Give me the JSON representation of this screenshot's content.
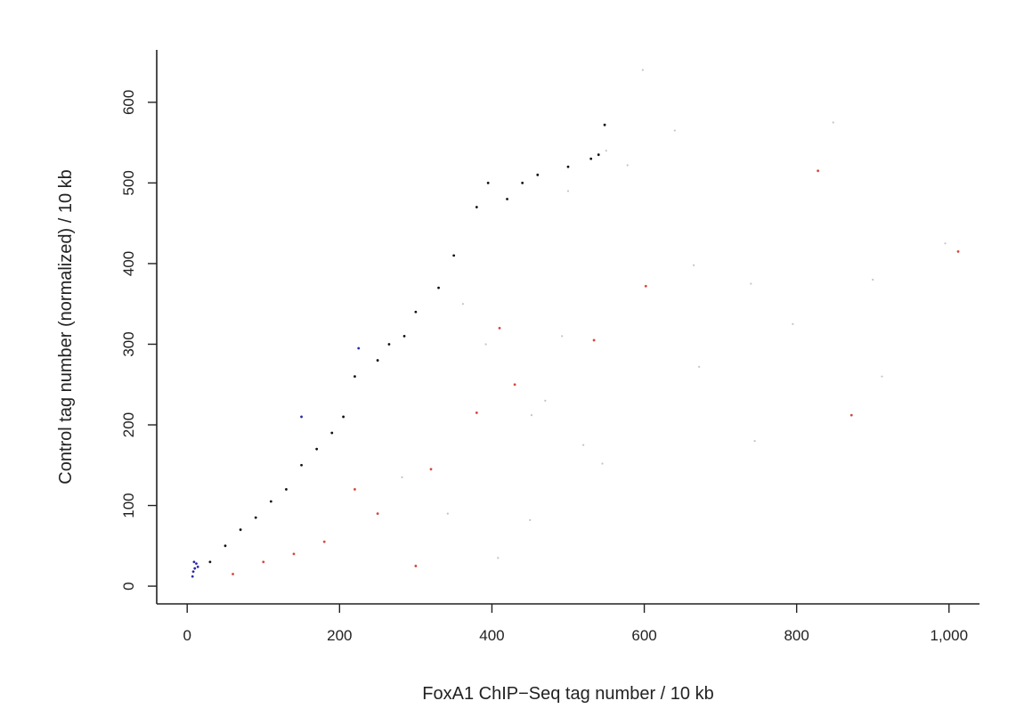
{
  "chart_data": {
    "type": "scatter",
    "xlabel": "FoxA1 ChIP−Seq tag number / 10 kb",
    "ylabel": "Control tag number (normalized) / 10 kb",
    "xlim": [
      -40,
      1040
    ],
    "ylim": [
      -22,
      665
    ],
    "x_ticks": [
      0,
      200,
      400,
      600,
      800,
      1000
    ],
    "x_tick_labels": [
      "0",
      "200",
      "400",
      "600",
      "800",
      "1,000"
    ],
    "y_ticks": [
      0,
      100,
      200,
      300,
      400,
      500,
      600
    ],
    "y_tick_labels": [
      "0",
      "100",
      "200",
      "300",
      "400",
      "500",
      "600"
    ],
    "axes_box": "left-and-bottom",
    "grid": false,
    "series": [
      {
        "color": "#111111",
        "points": [
          [
            548,
            572
          ],
          [
            540,
            535
          ],
          [
            530,
            530
          ],
          [
            500,
            520
          ],
          [
            460,
            510
          ],
          [
            440,
            500
          ],
          [
            420,
            480
          ],
          [
            395,
            500
          ],
          [
            380,
            470
          ],
          [
            350,
            410
          ],
          [
            330,
            370
          ],
          [
            300,
            340
          ],
          [
            285,
            310
          ],
          [
            265,
            300
          ],
          [
            250,
            280
          ],
          [
            220,
            260
          ],
          [
            205,
            210
          ],
          [
            190,
            190
          ],
          [
            170,
            170
          ],
          [
            150,
            150
          ],
          [
            130,
            120
          ],
          [
            110,
            105
          ],
          [
            90,
            85
          ],
          [
            70,
            70
          ],
          [
            50,
            50
          ],
          [
            30,
            30
          ]
        ]
      },
      {
        "color": "#d7463a",
        "points": [
          [
            1012,
            415
          ],
          [
            828,
            515
          ],
          [
            872,
            212
          ],
          [
            602,
            372
          ],
          [
            534,
            305
          ],
          [
            430,
            250
          ],
          [
            410,
            320
          ],
          [
            380,
            215
          ],
          [
            320,
            145
          ],
          [
            300,
            25
          ],
          [
            250,
            90
          ],
          [
            220,
            120
          ],
          [
            180,
            55
          ],
          [
            140,
            40
          ],
          [
            100,
            30
          ],
          [
            60,
            15
          ]
        ]
      },
      {
        "color": "#2a2aa8",
        "points": [
          [
            7,
            12
          ],
          [
            8,
            18
          ],
          [
            10,
            22
          ],
          [
            12,
            28
          ],
          [
            9,
            30
          ],
          [
            14,
            24
          ],
          [
            225,
            295
          ],
          [
            150,
            210
          ]
        ]
      },
      {
        "color": "#c4c4c4",
        "points": [
          [
            598,
            640
          ],
          [
            848,
            575
          ],
          [
            640,
            565
          ],
          [
            578,
            522
          ],
          [
            550,
            540
          ],
          [
            500,
            490
          ],
          [
            545,
            152
          ],
          [
            665,
            398
          ],
          [
            740,
            375
          ],
          [
            795,
            325
          ],
          [
            900,
            380
          ],
          [
            995,
            425
          ],
          [
            912,
            260
          ],
          [
            672,
            272
          ],
          [
            745,
            180
          ],
          [
            450,
            82
          ],
          [
            408,
            35
          ],
          [
            492,
            310
          ],
          [
            452,
            212
          ],
          [
            362,
            350
          ],
          [
            392,
            300
          ],
          [
            470,
            230
          ],
          [
            520,
            175
          ],
          [
            342,
            90
          ],
          [
            282,
            135
          ]
        ]
      }
    ]
  }
}
